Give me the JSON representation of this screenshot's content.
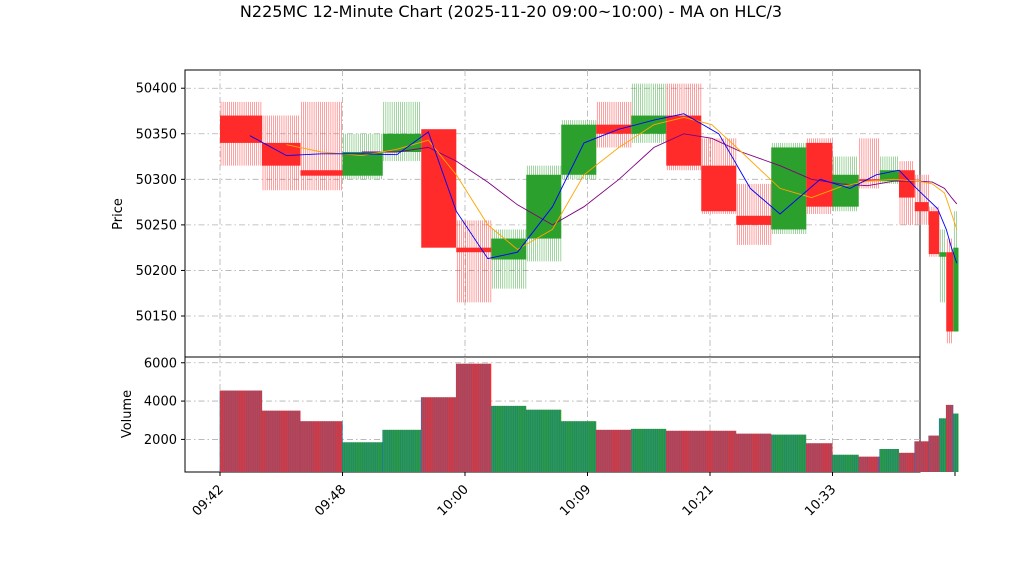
{
  "chart_data": {
    "type": "candlestick",
    "title": "N225MC 12-Minute Chart (2025-11-20 09:00~10:00) - MA on HLC/3",
    "price_panel": {
      "ylabel": "Price",
      "ylim": [
        50105,
        50420
      ],
      "yticks": [
        50150,
        50200,
        50250,
        50300,
        50350,
        50400
      ],
      "grid": true
    },
    "volume_panel": {
      "ylabel": "Volume",
      "ylim": [
        300,
        6300
      ],
      "yticks": [
        2000,
        4000,
        6000
      ],
      "grid": true
    },
    "xlim": [
      -0.5,
      41.5
    ],
    "xticks": [
      {
        "x": 1.5,
        "label": "09:42"
      },
      {
        "x": 8.5,
        "label": "09:48"
      },
      {
        "x": 15.5,
        "label": "10:00"
      },
      {
        "x": 22.5,
        "label": "10:09"
      },
      {
        "x": 29.5,
        "label": "10:21"
      },
      {
        "x": 36.5,
        "label": "10:33"
      },
      {
        "x": 43.5,
        "label": ""
      }
    ],
    "colors": {
      "up": "#2ca02c",
      "down": "#ff2a2a",
      "ma_fast": "#0000ff",
      "ma_mid": "#ffa500",
      "ma_slow": "#800080",
      "volume_edge": "#1f77b4"
    },
    "bars": [
      {
        "x0": 1.5,
        "x1": 3.9,
        "open": 50370,
        "high": 50385,
        "low": 50315,
        "close": 50340,
        "volume": 4550
      },
      {
        "x0": 3.9,
        "x1": 6.1,
        "open": 50340,
        "high": 50370,
        "low": 50288,
        "close": 50315,
        "volume": 3500
      },
      {
        "x0": 6.1,
        "x1": 8.5,
        "open": 50310,
        "high": 50385,
        "low": 50288,
        "close": 50304,
        "volume": 2950
      },
      {
        "x0": 8.5,
        "x1": 10.8,
        "open": 50304,
        "high": 50350,
        "low": 50300,
        "close": 50330,
        "volume": 1850
      },
      {
        "x0": 10.8,
        "x1": 13.0,
        "open": 50330,
        "high": 50385,
        "low": 50320,
        "close": 50350,
        "volume": 2500
      },
      {
        "x0": 13.0,
        "x1": 15.0,
        "open": 50355,
        "high": 50355,
        "low": 50225,
        "close": 50225,
        "volume": 4200
      },
      {
        "x0": 15.0,
        "x1": 17.0,
        "open": 50225,
        "high": 50255,
        "low": 50165,
        "close": 50220,
        "volume": 5950
      },
      {
        "x0": 17.0,
        "x1": 19.0,
        "open": 50212,
        "high": 50245,
        "low": 50180,
        "close": 50235,
        "volume": 3750
      },
      {
        "x0": 19.0,
        "x1": 21.0,
        "open": 50235,
        "high": 50315,
        "low": 50210,
        "close": 50305,
        "volume": 3550
      },
      {
        "x0": 21.0,
        "x1": 23.0,
        "open": 50305,
        "high": 50365,
        "low": 50300,
        "close": 50360,
        "volume": 2950
      },
      {
        "x0": 23.0,
        "x1": 25.0,
        "open": 50360,
        "high": 50385,
        "low": 50335,
        "close": 50350,
        "volume": 2500
      },
      {
        "x0": 25.0,
        "x1": 27.0,
        "open": 50350,
        "high": 50405,
        "low": 50340,
        "close": 50370,
        "volume": 2550
      },
      {
        "x0": 27.0,
        "x1": 29.0,
        "open": 50370,
        "high": 50405,
        "low": 50310,
        "close": 50315,
        "volume": 2450
      },
      {
        "x0": 29.0,
        "x1": 31.0,
        "open": 50315,
        "high": 50345,
        "low": 50262,
        "close": 50265,
        "volume": 2450
      },
      {
        "x0": 31.0,
        "x1": 33.0,
        "open": 50260,
        "high": 50295,
        "low": 50228,
        "close": 50250,
        "volume": 2300
      },
      {
        "x0": 33.0,
        "x1": 35.0,
        "open": 50245,
        "high": 50340,
        "low": 50240,
        "close": 50335,
        "volume": 2250
      },
      {
        "x0": 35.0,
        "x1": 36.5,
        "open": 50340,
        "high": 50345,
        "low": 50262,
        "close": 50270,
        "volume": 1800
      },
      {
        "x0": 36.5,
        "x1": 38.0,
        "open": 50270,
        "high": 50325,
        "low": 50265,
        "close": 50305,
        "volume": 1200
      },
      {
        "x0": 38.0,
        "x1": 39.2,
        "open": 50300,
        "high": 50345,
        "low": 50290,
        "close": 50298,
        "volume": 1100
      },
      {
        "x0": 39.2,
        "x1": 40.3,
        "open": 50298,
        "high": 50325,
        "low": 50295,
        "close": 50310,
        "volume": 1500
      },
      {
        "x0": 40.3,
        "x1": 41.2,
        "open": 50310,
        "high": 50320,
        "low": 50250,
        "close": 50280,
        "volume": 1300
      },
      {
        "x0": 41.2,
        "x1": 42.0,
        "open": 50275,
        "high": 50305,
        "low": 50250,
        "close": 50265,
        "volume": 1900
      },
      {
        "x0": 42.0,
        "x1": 42.6,
        "open": 50265,
        "high": 50270,
        "low": 50215,
        "close": 50218,
        "volume": 2200
      },
      {
        "x0": 42.6,
        "x1": 43.0,
        "open": 50215,
        "high": 50245,
        "low": 50165,
        "close": 50220,
        "volume": 3100
      },
      {
        "x0": 43.0,
        "x1": 43.4,
        "open": 50220,
        "high": 50235,
        "low": 50120,
        "close": 50133,
        "volume": 3800
      },
      {
        "x0": 43.4,
        "x1": 43.7,
        "open": 50133,
        "high": 50265,
        "low": 50133,
        "close": 50225,
        "volume": 3350
      }
    ],
    "ma_fast": [
      [
        3.2,
        50348
      ],
      [
        5.3,
        50326
      ],
      [
        7.3,
        50328
      ],
      [
        9.6,
        50328
      ],
      [
        11.6,
        50327
      ],
      [
        13.4,
        50352
      ],
      [
        15.0,
        50265
      ],
      [
        16.8,
        50213
      ],
      [
        18.5,
        50220
      ],
      [
        20.5,
        50270
      ],
      [
        22.3,
        50340
      ],
      [
        24.3,
        50355
      ],
      [
        26.3,
        50365
      ],
      [
        28.0,
        50372
      ],
      [
        30.0,
        50350
      ],
      [
        31.8,
        50290
      ],
      [
        33.5,
        50262
      ],
      [
        35.8,
        50300
      ],
      [
        37.5,
        50290
      ],
      [
        39.0,
        50305
      ],
      [
        40.3,
        50310
      ],
      [
        41.3,
        50290
      ],
      [
        42.5,
        50268
      ],
      [
        43.0,
        50245
      ],
      [
        43.3,
        50225
      ],
      [
        43.6,
        50208
      ]
    ],
    "ma_mid": [
      [
        5.3,
        50338
      ],
      [
        7.3,
        50330
      ],
      [
        9.6,
        50326
      ],
      [
        11.6,
        50333
      ],
      [
        13.4,
        50343
      ],
      [
        15.0,
        50305
      ],
      [
        16.8,
        50250
      ],
      [
        18.5,
        50223
      ],
      [
        20.5,
        50245
      ],
      [
        22.3,
        50305
      ],
      [
        24.3,
        50335
      ],
      [
        26.3,
        50360
      ],
      [
        28.0,
        50368
      ],
      [
        29.6,
        50360
      ],
      [
        31.3,
        50330
      ],
      [
        33.5,
        50290
      ],
      [
        35.3,
        50280
      ],
      [
        37.0,
        50292
      ],
      [
        38.5,
        50298
      ],
      [
        40.0,
        50300
      ],
      [
        41.4,
        50298
      ],
      [
        42.2,
        50295
      ],
      [
        42.9,
        50285
      ],
      [
        43.2,
        50268
      ],
      [
        43.6,
        50245
      ]
    ],
    "ma_slow": [
      [
        9.6,
        50330
      ],
      [
        11.6,
        50330
      ],
      [
        13.4,
        50335
      ],
      [
        15.0,
        50320
      ],
      [
        16.8,
        50297
      ],
      [
        18.5,
        50272
      ],
      [
        20.5,
        50250
      ],
      [
        22.3,
        50270
      ],
      [
        24.3,
        50300
      ],
      [
        26.3,
        50335
      ],
      [
        28.0,
        50350
      ],
      [
        29.6,
        50345
      ],
      [
        31.3,
        50330
      ],
      [
        33.5,
        50315
      ],
      [
        35.3,
        50300
      ],
      [
        37.0,
        50295
      ],
      [
        38.5,
        50293
      ],
      [
        40.0,
        50298
      ],
      [
        41.4,
        50298
      ],
      [
        42.2,
        50297
      ],
      [
        42.9,
        50290
      ],
      [
        43.3,
        50280
      ],
      [
        43.6,
        50273
      ]
    ]
  }
}
